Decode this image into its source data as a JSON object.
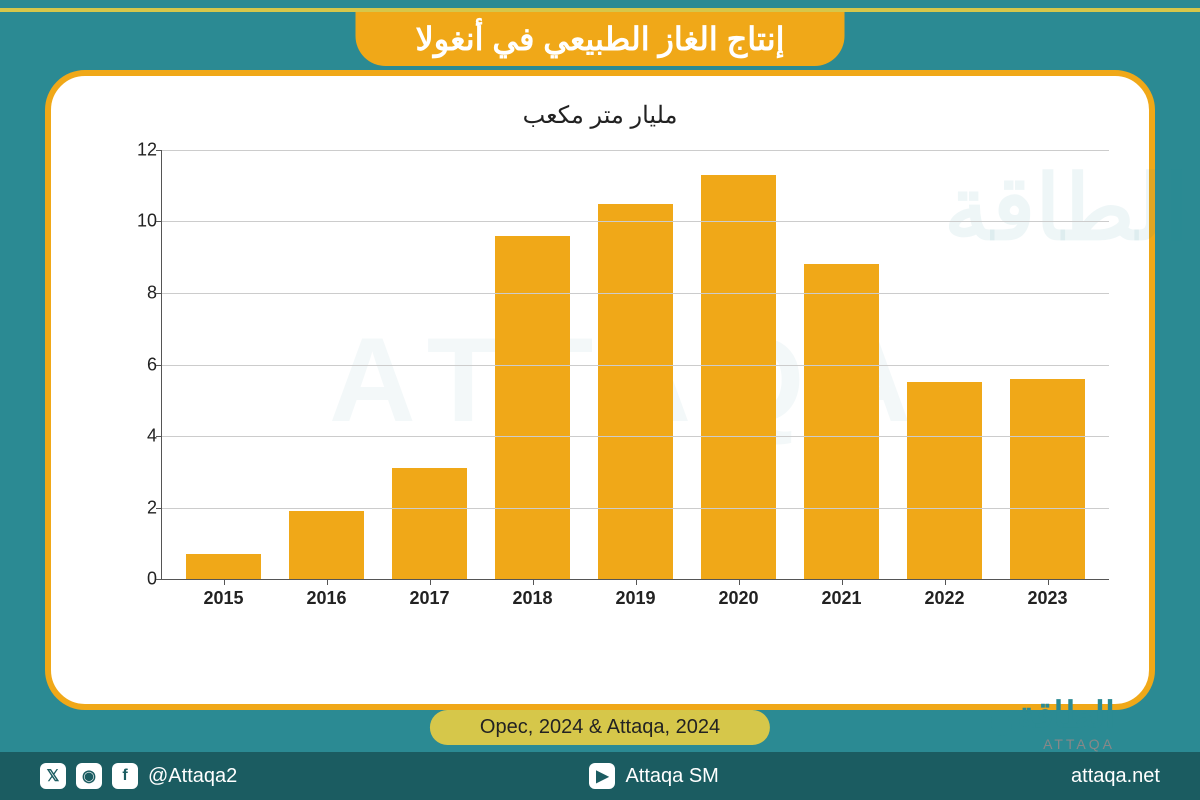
{
  "title": "إنتاج الغاز الطبيعي في أنغولا",
  "subtitle": "مليار متر مكعب",
  "chart": {
    "type": "bar",
    "categories": [
      "2015",
      "2016",
      "2017",
      "2018",
      "2019",
      "2020",
      "2021",
      "2022",
      "2023"
    ],
    "values": [
      0.7,
      1.9,
      3.1,
      9.6,
      10.5,
      11.3,
      8.8,
      5.5,
      5.6
    ],
    "bar_color": "#f0a818",
    "ylim": [
      0,
      12
    ],
    "ytick_step": 2,
    "yticks": [
      "0",
      "2",
      "4",
      "6",
      "8",
      "10",
      "12"
    ],
    "grid_color": "#cccccc",
    "axis_color": "#555555",
    "tick_fontsize": 18,
    "xlabel_fontsize": 18,
    "background_color": "#ffffff",
    "bar_width_pct": 72
  },
  "source": "Opec, 2024 & Attaqa, 2024",
  "logo": {
    "main": "الطاقة",
    "sub": "ATTAQA"
  },
  "footer": {
    "handle": "@Attaqa2",
    "youtube": "Attaqa SM",
    "site": "attaqa.net"
  },
  "watermark": "ATTAQA",
  "colors": {
    "page_bg": "#2b8a93",
    "accent_yellow": "#d6c74a",
    "bar_orange": "#f0a818",
    "footer_bg": "#1b5c61",
    "card_border": "#f0a818",
    "text": "#222222"
  }
}
